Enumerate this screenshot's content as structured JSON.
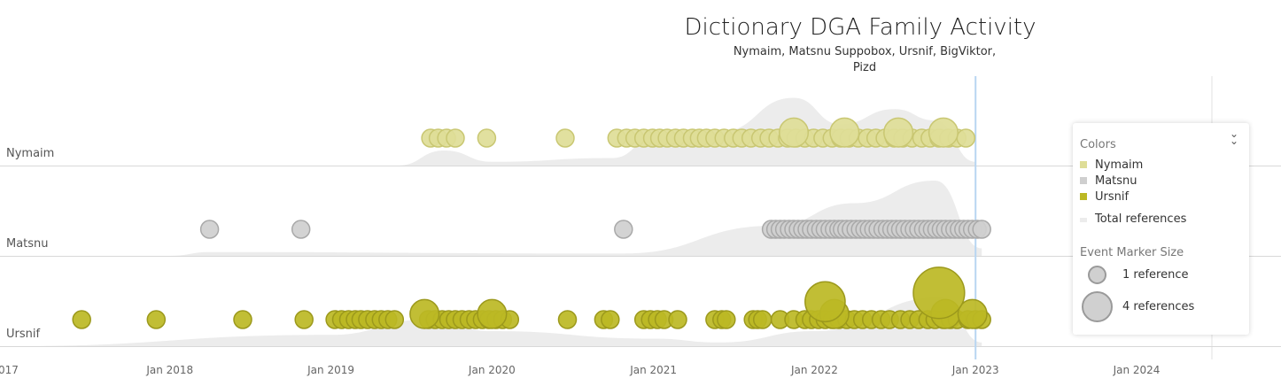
{
  "chart_data": {
    "type": "scatter",
    "title": "Dictionary DGA Family Activity",
    "subtitle_lines": [
      "Nymaim, Matsnu Suppobox, Ursnif, BigViktor,",
      "Pizd"
    ],
    "x_axis": {
      "range": [
        "2016-12-01",
        "2024-11-01"
      ],
      "tick_labels": [
        "017",
        "Jan 2018",
        "Jan 2019",
        "Jan 2020",
        "Jan 2021",
        "Jan 2022",
        "Jan 2023",
        "Jan 2024"
      ],
      "tick_dates": [
        "2017-01-01",
        "2018-01-01",
        "2019-01-01",
        "2020-01-01",
        "2021-01-01",
        "2022-01-01",
        "2023-01-01",
        "2024-01-01"
      ],
      "marker_line_date": "2023-01-01"
    },
    "rows": [
      "Nymaim",
      "Matsnu",
      "Ursnif"
    ],
    "series": [
      {
        "name": "Nymaim",
        "color": "#dedd97",
        "stroke": "#c9c772",
        "events": [
          [
            "2019-08-15",
            1
          ],
          [
            "2019-09-01",
            1
          ],
          [
            "2019-09-20",
            1
          ],
          [
            "2019-10-10",
            1
          ],
          [
            "2019-12-20",
            1
          ],
          [
            "2020-06-15",
            1
          ],
          [
            "2020-10-10",
            1
          ],
          [
            "2020-11-01",
            1
          ],
          [
            "2020-11-20",
            1
          ],
          [
            "2020-12-10",
            1
          ],
          [
            "2020-12-30",
            1
          ],
          [
            "2021-01-15",
            1
          ],
          [
            "2021-02-01",
            1
          ],
          [
            "2021-02-20",
            1
          ],
          [
            "2021-03-10",
            1
          ],
          [
            "2021-03-30",
            1
          ],
          [
            "2021-04-15",
            1
          ],
          [
            "2021-05-01",
            1
          ],
          [
            "2021-05-20",
            1
          ],
          [
            "2021-06-10",
            1
          ],
          [
            "2021-07-01",
            1
          ],
          [
            "2021-07-20",
            1
          ],
          [
            "2021-08-10",
            1
          ],
          [
            "2021-09-01",
            1
          ],
          [
            "2021-09-20",
            1
          ],
          [
            "2021-10-10",
            1
          ],
          [
            "2021-11-01",
            1
          ],
          [
            "2021-11-20",
            1
          ],
          [
            "2021-12-10",
            1
          ],
          [
            "2021-12-30",
            1
          ],
          [
            "2022-01-20",
            1
          ],
          [
            "2022-02-10",
            1
          ],
          [
            "2022-03-01",
            1
          ],
          [
            "2022-03-20",
            1
          ],
          [
            "2022-04-10",
            1
          ],
          [
            "2022-05-01",
            1
          ],
          [
            "2022-05-20",
            1
          ],
          [
            "2022-06-10",
            1
          ],
          [
            "2022-07-01",
            1
          ],
          [
            "2022-07-20",
            1
          ],
          [
            "2022-08-10",
            1
          ],
          [
            "2022-09-01",
            1
          ],
          [
            "2022-09-20",
            1
          ],
          [
            "2022-10-10",
            1
          ],
          [
            "2022-11-01",
            1
          ],
          [
            "2022-11-20",
            1
          ],
          [
            "2022-12-10",
            1
          ],
          [
            "2021-11-15",
            2
          ],
          [
            "2022-03-10",
            2
          ],
          [
            "2022-07-10",
            2
          ],
          [
            "2022-10-20",
            2
          ]
        ]
      },
      {
        "name": "Matsnu",
        "color": "#cfcfcf",
        "stroke": "#a9a9a9",
        "events": [
          [
            "2018-04-01",
            1
          ],
          [
            "2018-10-25",
            1
          ],
          [
            "2020-10-25",
            1
          ],
          [
            "2021-09-25",
            1
          ],
          [
            "2021-10-05",
            1
          ],
          [
            "2021-10-15",
            1
          ],
          [
            "2021-10-25",
            1
          ],
          [
            "2021-11-05",
            1
          ],
          [
            "2021-11-15",
            1
          ],
          [
            "2021-11-25",
            1
          ],
          [
            "2021-12-05",
            1
          ],
          [
            "2021-12-15",
            1
          ],
          [
            "2021-12-25",
            1
          ],
          [
            "2022-01-05",
            1
          ],
          [
            "2022-01-15",
            1
          ],
          [
            "2022-01-25",
            1
          ],
          [
            "2022-02-05",
            1
          ],
          [
            "2022-02-15",
            1
          ],
          [
            "2022-02-25",
            1
          ],
          [
            "2022-03-05",
            1
          ],
          [
            "2022-03-15",
            1
          ],
          [
            "2022-03-25",
            1
          ],
          [
            "2022-04-05",
            1
          ],
          [
            "2022-04-15",
            1
          ],
          [
            "2022-04-25",
            1
          ],
          [
            "2022-05-05",
            1
          ],
          [
            "2022-05-15",
            1
          ],
          [
            "2022-05-25",
            1
          ],
          [
            "2022-06-05",
            1
          ],
          [
            "2022-06-15",
            1
          ],
          [
            "2022-06-25",
            1
          ],
          [
            "2022-07-05",
            1
          ],
          [
            "2022-07-15",
            1
          ],
          [
            "2022-07-25",
            1
          ],
          [
            "2022-08-05",
            1
          ],
          [
            "2022-08-15",
            1
          ],
          [
            "2022-08-25",
            1
          ],
          [
            "2022-09-05",
            1
          ],
          [
            "2022-09-15",
            1
          ],
          [
            "2022-09-25",
            1
          ],
          [
            "2022-10-05",
            1
          ],
          [
            "2022-10-15",
            1
          ],
          [
            "2022-10-25",
            1
          ],
          [
            "2022-11-05",
            1
          ],
          [
            "2022-11-15",
            1
          ],
          [
            "2022-11-25",
            1
          ],
          [
            "2022-12-05",
            1
          ],
          [
            "2022-12-15",
            1
          ],
          [
            "2022-12-25",
            1
          ],
          [
            "2023-01-05",
            1
          ],
          [
            "2023-01-15",
            1
          ]
        ]
      },
      {
        "name": "Ursnif",
        "color": "#bcb824",
        "stroke": "#9c991c",
        "events": [
          [
            "2017-06-15",
            1
          ],
          [
            "2017-12-01",
            1
          ],
          [
            "2018-06-15",
            1
          ],
          [
            "2018-11-01",
            1
          ],
          [
            "2019-01-10",
            1
          ],
          [
            "2019-01-25",
            1
          ],
          [
            "2019-02-10",
            1
          ],
          [
            "2019-02-25",
            1
          ],
          [
            "2019-03-10",
            1
          ],
          [
            "2019-03-25",
            1
          ],
          [
            "2019-04-10",
            1
          ],
          [
            "2019-04-25",
            1
          ],
          [
            "2019-05-10",
            1
          ],
          [
            "2019-05-25",
            1
          ],
          [
            "2019-08-10",
            1
          ],
          [
            "2019-08-25",
            1
          ],
          [
            "2019-09-10",
            1
          ],
          [
            "2019-09-25",
            1
          ],
          [
            "2019-10-10",
            1
          ],
          [
            "2019-10-25",
            1
          ],
          [
            "2019-11-10",
            1
          ],
          [
            "2019-11-25",
            1
          ],
          [
            "2019-12-10",
            1
          ],
          [
            "2019-12-25",
            1
          ],
          [
            "2020-01-10",
            1
          ],
          [
            "2020-01-25",
            1
          ],
          [
            "2020-02-10",
            1
          ],
          [
            "2020-06-20",
            1
          ],
          [
            "2020-09-10",
            1
          ],
          [
            "2020-09-25",
            1
          ],
          [
            "2020-12-10",
            1
          ],
          [
            "2020-12-25",
            1
          ],
          [
            "2021-01-10",
            1
          ],
          [
            "2021-01-25",
            1
          ],
          [
            "2021-02-25",
            1
          ],
          [
            "2021-05-20",
            1
          ],
          [
            "2021-06-05",
            1
          ],
          [
            "2021-06-15",
            1
          ],
          [
            "2021-08-15",
            1
          ],
          [
            "2021-08-25",
            1
          ],
          [
            "2021-09-05",
            1
          ],
          [
            "2021-10-15",
            1
          ],
          [
            "2021-11-15",
            1
          ],
          [
            "2021-12-10",
            1
          ],
          [
            "2021-12-25",
            1
          ],
          [
            "2022-01-10",
            1
          ],
          [
            "2022-01-25",
            1
          ],
          [
            "2022-02-10",
            1
          ],
          [
            "2022-02-25",
            1
          ],
          [
            "2022-03-15",
            1
          ],
          [
            "2022-04-01",
            1
          ],
          [
            "2022-04-20",
            1
          ],
          [
            "2022-05-10",
            1
          ],
          [
            "2022-06-01",
            1
          ],
          [
            "2022-06-20",
            1
          ],
          [
            "2022-07-15",
            1
          ],
          [
            "2022-08-05",
            1
          ],
          [
            "2022-08-25",
            1
          ],
          [
            "2022-09-15",
            1
          ],
          [
            "2022-10-01",
            1
          ],
          [
            "2022-10-20",
            1
          ],
          [
            "2022-11-05",
            1
          ],
          [
            "2022-11-20",
            1
          ],
          [
            "2022-12-15",
            1
          ],
          [
            "2023-01-01",
            1
          ],
          [
            "2023-01-15",
            1
          ],
          [
            "2019-08-01",
            2
          ],
          [
            "2020-01-01",
            2
          ],
          [
            "2022-02-15",
            2
          ],
          [
            "2022-10-25",
            2
          ],
          [
            "2022-12-25",
            2
          ],
          [
            "2022-01-25",
            3
          ],
          [
            "2022-10-10",
            4
          ]
        ]
      }
    ],
    "total_references": {
      "name": "Total references",
      "color": "#ececec",
      "Nymaim": [
        [
          "2019-06-01",
          0
        ],
        [
          "2019-09-15",
          0.2
        ],
        [
          "2020-01-01",
          0.05
        ],
        [
          "2020-10-01",
          0.1
        ],
        [
          "2021-01-01",
          0.35
        ],
        [
          "2021-06-01",
          0.45
        ],
        [
          "2021-11-15",
          0.9
        ],
        [
          "2022-03-01",
          0.55
        ],
        [
          "2022-07-01",
          0.75
        ],
        [
          "2022-10-01",
          0.6
        ],
        [
          "2023-01-01",
          0.05
        ]
      ],
      "Matsnu": [
        [
          "2018-01-01",
          0
        ],
        [
          "2018-04-01",
          0.05
        ],
        [
          "2020-10-25",
          0.03
        ],
        [
          "2021-10-01",
          0.4
        ],
        [
          "2022-04-01",
          0.7
        ],
        [
          "2022-10-01",
          1
        ],
        [
          "2023-01-15",
          0.1
        ]
      ],
      "Ursnif": [
        [
          "2017-01-01",
          0
        ],
        [
          "2019-01-01",
          0.15
        ],
        [
          "2019-08-01",
          0.35
        ],
        [
          "2020-01-01",
          0.2
        ],
        [
          "2021-01-01",
          0.1
        ],
        [
          "2021-06-01",
          0.05
        ],
        [
          "2022-01-01",
          0.2
        ],
        [
          "2022-10-15",
          0.65
        ],
        [
          "2023-01-15",
          0.05
        ]
      ]
    },
    "legend": {
      "colors_heading": "Colors",
      "items": [
        "Nymaim",
        "Matsnu",
        "Ursnif"
      ],
      "total_label": "Total references",
      "size_heading": "Event Marker Size",
      "size_items": [
        {
          "label": "1 reference",
          "refs": 1
        },
        {
          "label": "4 references",
          "refs": 4
        }
      ],
      "placement": "right"
    },
    "grid": false
  }
}
